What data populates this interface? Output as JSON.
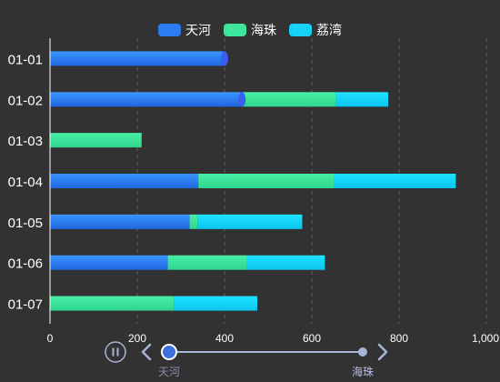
{
  "chart_data": {
    "type": "bar",
    "orientation": "horizontal",
    "stacked": true,
    "categories": [
      "01-01",
      "01-02",
      "01-03",
      "01-04",
      "01-05",
      "01-06",
      "01-07"
    ],
    "series": [
      {
        "name": "天河",
        "values": [
          400,
          440,
          0,
          340,
          320,
          270,
          0
        ],
        "color": "#2a7cf0"
      },
      {
        "name": "海珠",
        "values": [
          0,
          215,
          210,
          310,
          18,
          180,
          285
        ],
        "color": "#3ee59a"
      },
      {
        "name": "荔湾",
        "values": [
          0,
          120,
          0,
          280,
          240,
          180,
          190
        ],
        "color": "#17d2f7"
      }
    ],
    "xlim": [
      0,
      1000
    ],
    "xticks": [
      "0",
      "200",
      "400",
      "600",
      "800",
      "1,000"
    ],
    "grid": true,
    "legend_placement": "top-center"
  },
  "timeline": {
    "play_icon": "pause-icon",
    "prev_icon": "chevron-left-icon",
    "next_icon": "chevron-right-icon",
    "points": [
      "天河",
      "海珠"
    ],
    "current": 0
  },
  "colors": {
    "background": "#323232",
    "axis_text": "#ffffff",
    "grid": "#5e5e5e",
    "timeline": "#a8b3d8",
    "timeline_active": "#3e6fe0"
  }
}
